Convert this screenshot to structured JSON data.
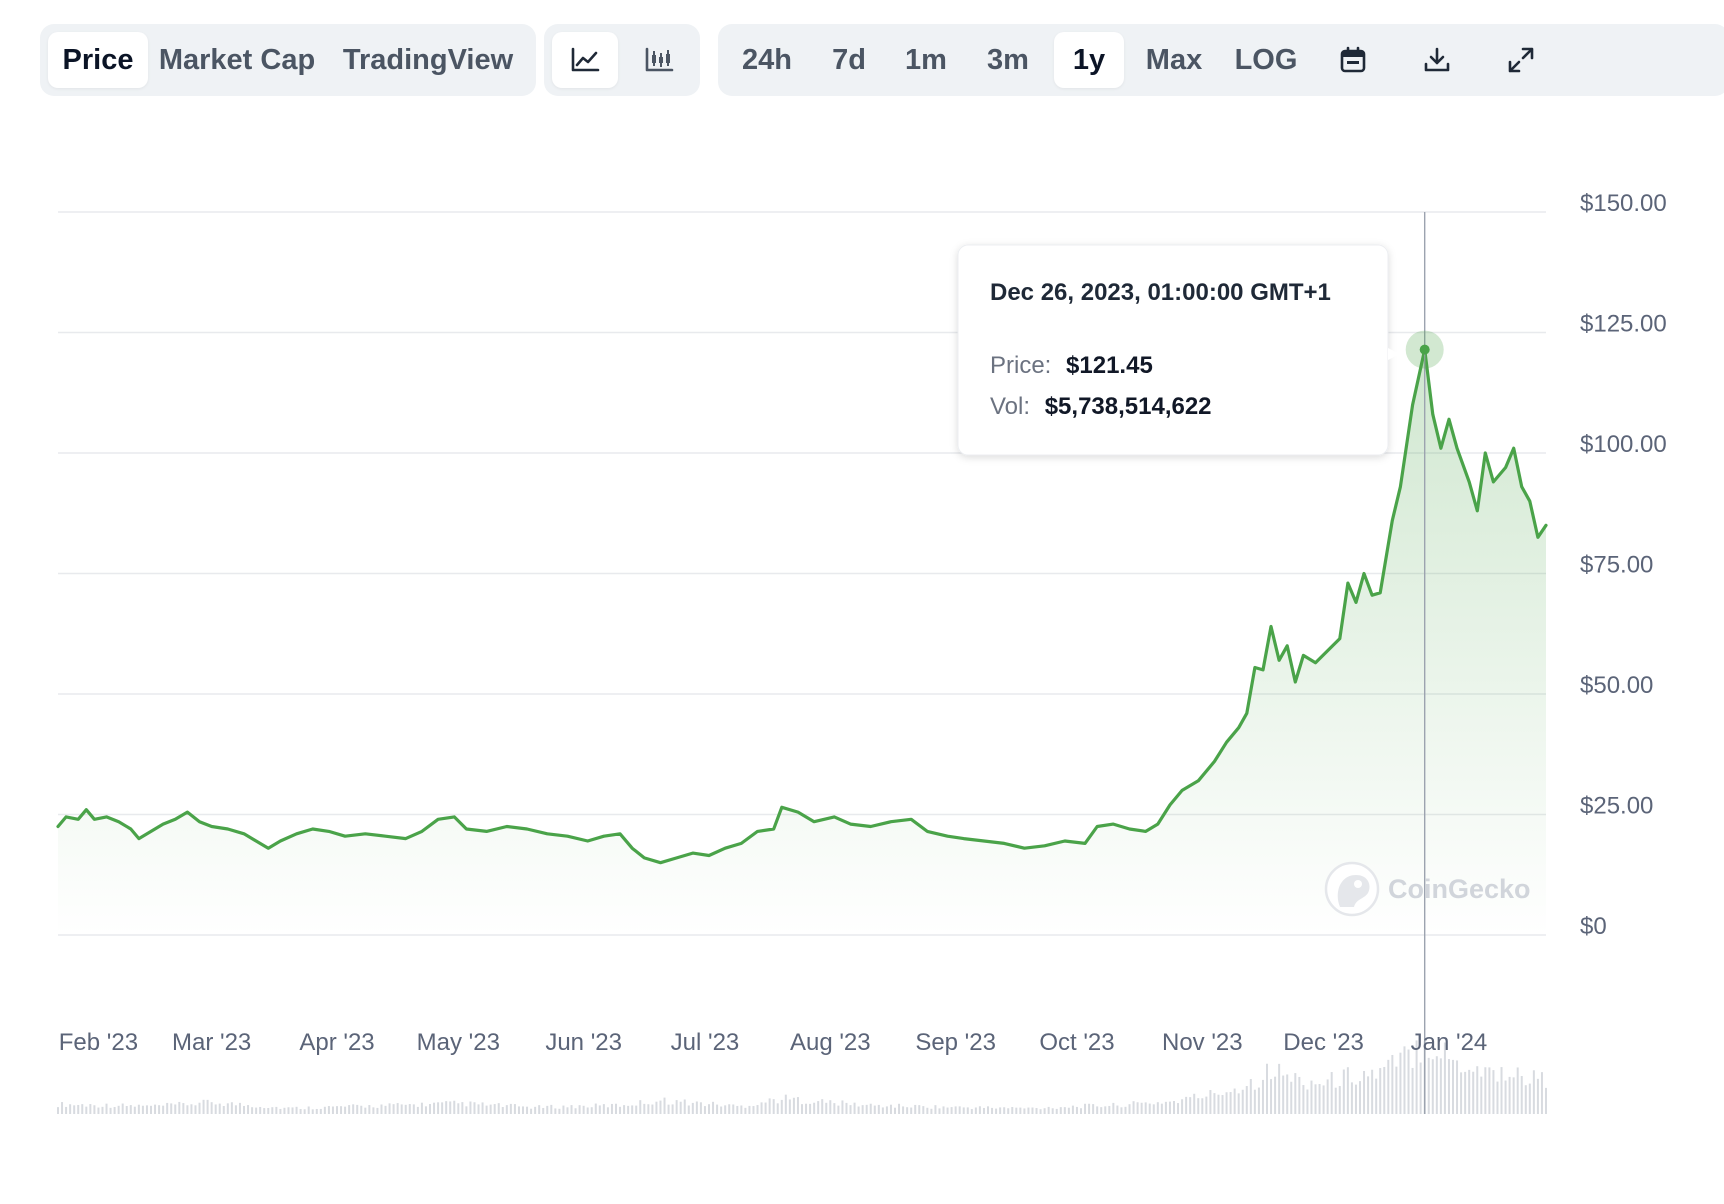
{
  "toolbar": {
    "data_tabs": [
      {
        "label": "Price",
        "active": true
      },
      {
        "label": "Market Cap",
        "active": false
      },
      {
        "label": "TradingView",
        "active": false
      }
    ],
    "chart_type_buttons": [
      {
        "icon": "line-chart-icon",
        "active": true
      },
      {
        "icon": "candlestick-chart-icon",
        "active": false
      }
    ],
    "range_buttons": [
      {
        "label": "24h",
        "active": false
      },
      {
        "label": "7d",
        "active": false
      },
      {
        "label": "1m",
        "active": false
      },
      {
        "label": "3m",
        "active": false
      },
      {
        "label": "1y",
        "active": true
      },
      {
        "label": "Max",
        "active": false
      },
      {
        "label": "LOG",
        "active": false
      }
    ],
    "action_icons": [
      "calendar-icon",
      "download-icon",
      "expand-icon"
    ]
  },
  "tooltip": {
    "date": "Dec 26, 2023, 01:00:00 GMT+1",
    "price_label": "Price:",
    "price_value": "$121.45",
    "vol_label": "Vol:",
    "vol_value": "$5,738,514,622"
  },
  "watermark": "CoinGecko",
  "colors": {
    "line": "#4aa349",
    "fill": "#dcefdb",
    "grid": "#e8eaed",
    "axis_text": "#5b6478",
    "tab_bg": "#eff2f5"
  },
  "chart_data": {
    "type": "area",
    "ylim": [
      0,
      150
    ],
    "ytick_labels": [
      "$150.00",
      "$125.00",
      "$100.00",
      "$75.00",
      "$50.00",
      "$25.00",
      "$0"
    ],
    "yticks": [
      150,
      125,
      100,
      75,
      50,
      25,
      0
    ],
    "xtick_labels": [
      "Feb '23",
      "Mar '23",
      "Apr '23",
      "May '23",
      "Jun '23",
      "Jul '23",
      "Aug '23",
      "Sep '23",
      "Oct '23",
      "Nov '23",
      "Dec '23",
      "Jan '24"
    ],
    "xtick_dates": [
      "2023-02-01",
      "2023-03-01",
      "2023-04-01",
      "2023-05-01",
      "2023-06-01",
      "2023-07-01",
      "2023-08-01",
      "2023-09-01",
      "2023-10-01",
      "2023-11-01",
      "2023-12-01",
      "2024-01-01"
    ],
    "grid": true,
    "series": [
      {
        "points": [
          [
            "2023-01-22",
            22.5
          ],
          [
            "2023-01-24",
            24.5
          ],
          [
            "2023-01-27",
            24.0
          ],
          [
            "2023-01-29",
            26.0
          ],
          [
            "2023-01-31",
            24.0
          ],
          [
            "2023-02-03",
            24.5
          ],
          [
            "2023-02-06",
            23.5
          ],
          [
            "2023-02-09",
            22.0
          ],
          [
            "2023-02-11",
            20.0
          ],
          [
            "2023-02-14",
            21.5
          ],
          [
            "2023-02-17",
            23.0
          ],
          [
            "2023-02-20",
            24.0
          ],
          [
            "2023-02-23",
            25.5
          ],
          [
            "2023-02-26",
            23.5
          ],
          [
            "2023-03-01",
            22.5
          ],
          [
            "2023-03-05",
            22.0
          ],
          [
            "2023-03-09",
            21.0
          ],
          [
            "2023-03-12",
            19.5
          ],
          [
            "2023-03-15",
            18.0
          ],
          [
            "2023-03-18",
            19.5
          ],
          [
            "2023-03-22",
            21.0
          ],
          [
            "2023-03-26",
            22.0
          ],
          [
            "2023-03-30",
            21.5
          ],
          [
            "2023-04-03",
            20.5
          ],
          [
            "2023-04-08",
            21.0
          ],
          [
            "2023-04-13",
            20.5
          ],
          [
            "2023-04-18",
            20.0
          ],
          [
            "2023-04-22",
            21.5
          ],
          [
            "2023-04-26",
            24.0
          ],
          [
            "2023-04-30",
            24.5
          ],
          [
            "2023-05-03",
            22.0
          ],
          [
            "2023-05-08",
            21.5
          ],
          [
            "2023-05-13",
            22.5
          ],
          [
            "2023-05-18",
            22.0
          ],
          [
            "2023-05-23",
            21.0
          ],
          [
            "2023-05-28",
            20.5
          ],
          [
            "2023-06-02",
            19.5
          ],
          [
            "2023-06-06",
            20.5
          ],
          [
            "2023-06-10",
            21.0
          ],
          [
            "2023-06-13",
            18.0
          ],
          [
            "2023-06-16",
            16.0
          ],
          [
            "2023-06-20",
            15.0
          ],
          [
            "2023-06-24",
            16.0
          ],
          [
            "2023-06-28",
            17.0
          ],
          [
            "2023-07-02",
            16.5
          ],
          [
            "2023-07-06",
            18.0
          ],
          [
            "2023-07-10",
            19.0
          ],
          [
            "2023-07-14",
            21.5
          ],
          [
            "2023-07-18",
            22.0
          ],
          [
            "2023-07-20",
            26.5
          ],
          [
            "2023-07-24",
            25.5
          ],
          [
            "2023-07-28",
            23.5
          ],
          [
            "2023-08-02",
            24.5
          ],
          [
            "2023-08-06",
            23.0
          ],
          [
            "2023-08-11",
            22.5
          ],
          [
            "2023-08-16",
            23.5
          ],
          [
            "2023-08-21",
            24.0
          ],
          [
            "2023-08-25",
            21.5
          ],
          [
            "2023-08-30",
            20.5
          ],
          [
            "2023-09-03",
            20.0
          ],
          [
            "2023-09-08",
            19.5
          ],
          [
            "2023-09-13",
            19.0
          ],
          [
            "2023-09-18",
            18.0
          ],
          [
            "2023-09-23",
            18.5
          ],
          [
            "2023-09-28",
            19.5
          ],
          [
            "2023-10-03",
            19.0
          ],
          [
            "2023-10-06",
            22.5
          ],
          [
            "2023-10-10",
            23.0
          ],
          [
            "2023-10-14",
            22.0
          ],
          [
            "2023-10-18",
            21.5
          ],
          [
            "2023-10-21",
            23.0
          ],
          [
            "2023-10-24",
            27.0
          ],
          [
            "2023-10-27",
            30.0
          ],
          [
            "2023-10-31",
            32.0
          ],
          [
            "2023-11-04",
            36.0
          ],
          [
            "2023-11-07",
            40.0
          ],
          [
            "2023-11-10",
            43.0
          ],
          [
            "2023-11-12",
            46.0
          ],
          [
            "2023-11-14",
            55.5
          ],
          [
            "2023-11-16",
            55.0
          ],
          [
            "2023-11-18",
            64.0
          ],
          [
            "2023-11-20",
            57.0
          ],
          [
            "2023-11-22",
            60.0
          ],
          [
            "2023-11-24",
            52.5
          ],
          [
            "2023-11-26",
            58.0
          ],
          [
            "2023-11-29",
            56.5
          ],
          [
            "2023-12-02",
            59.0
          ],
          [
            "2023-12-05",
            61.5
          ],
          [
            "2023-12-07",
            73.0
          ],
          [
            "2023-12-09",
            69.0
          ],
          [
            "2023-12-11",
            75.0
          ],
          [
            "2023-12-13",
            70.5
          ],
          [
            "2023-12-15",
            71.0
          ],
          [
            "2023-12-18",
            86.0
          ],
          [
            "2023-12-20",
            93.0
          ],
          [
            "2023-12-23",
            110.0
          ],
          [
            "2023-12-26",
            121.45
          ],
          [
            "2023-12-28",
            108.0
          ],
          [
            "2023-12-30",
            101.0
          ],
          [
            "2024-01-01",
            107.0
          ],
          [
            "2024-01-03",
            101.0
          ],
          [
            "2024-01-06",
            94.0
          ],
          [
            "2024-01-08",
            88.0
          ],
          [
            "2024-01-10",
            100.0
          ],
          [
            "2024-01-12",
            94.0
          ],
          [
            "2024-01-15",
            97.0
          ],
          [
            "2024-01-17",
            101.0
          ],
          [
            "2024-01-19",
            93.0
          ],
          [
            "2024-01-21",
            90.0
          ],
          [
            "2024-01-23",
            82.5
          ],
          [
            "2024-01-25",
            85.0
          ]
        ]
      }
    ],
    "volume": {
      "points": [
        [
          "2023-01-22",
          0.1
        ],
        [
          "2023-02-15",
          0.08
        ],
        [
          "2023-03-01",
          0.12
        ],
        [
          "2023-03-20",
          0.06
        ],
        [
          "2023-04-15",
          0.09
        ],
        [
          "2023-05-01",
          0.11
        ],
        [
          "2023-05-20",
          0.07
        ],
        [
          "2023-06-10",
          0.09
        ],
        [
          "2023-06-20",
          0.14
        ],
        [
          "2023-07-10",
          0.08
        ],
        [
          "2023-07-20",
          0.16
        ],
        [
          "2023-08-10",
          0.09
        ],
        [
          "2023-09-01",
          0.07
        ],
        [
          "2023-09-20",
          0.06
        ],
        [
          "2023-10-01",
          0.08
        ],
        [
          "2023-10-10",
          0.09
        ],
        [
          "2023-10-25",
          0.13
        ],
        [
          "2023-11-05",
          0.22
        ],
        [
          "2023-11-12",
          0.3
        ],
        [
          "2023-11-18",
          0.45
        ],
        [
          "2023-11-25",
          0.35
        ],
        [
          "2023-12-01",
          0.32
        ],
        [
          "2023-12-08",
          0.4
        ],
        [
          "2023-12-15",
          0.42
        ],
        [
          "2023-12-22",
          0.6
        ],
        [
          "2023-12-26",
          0.78
        ],
        [
          "2024-01-02",
          0.55
        ],
        [
          "2024-01-10",
          0.45
        ],
        [
          "2024-01-18",
          0.4
        ],
        [
          "2024-01-25",
          0.35
        ]
      ]
    },
    "hover": {
      "date": "2023-12-26",
      "value": 121.45
    }
  }
}
